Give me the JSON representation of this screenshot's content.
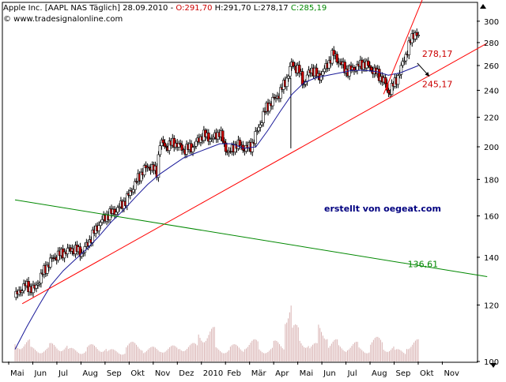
{
  "header": {
    "instrument": "Apple Inc. [AAPL NAS  Täglich] 28.09.2010 - ",
    "open": "O:291,70",
    "high": "H:291,70",
    "low": "L:278,17",
    "close": "C:285,19",
    "copyright": "© www.tradesignalonline.com"
  },
  "watermark": "erstellt von oegeat.com",
  "colors": {
    "open": "#cc0000",
    "close": "#008800",
    "up_trend": "#ff0000",
    "down_trend": "#008800",
    "moving_average": "#1a1a99",
    "watermark": "#000080",
    "candle_up": "#ffffff",
    "candle_down": "#cc0000",
    "volume": "#d9b3b3"
  },
  "chart_data": {
    "type": "candlestick",
    "y_scale": "log",
    "ylim": [
      100,
      310
    ],
    "y_ticks": [
      "300",
      "280",
      "260",
      "240",
      "220",
      "200",
      "180",
      "160",
      "140",
      "120",
      "100"
    ],
    "y_tick_values": [
      300,
      280,
      260,
      240,
      220,
      200,
      180,
      160,
      140,
      120,
      100
    ],
    "x_ticks": [
      "Mai",
      "Jun",
      "Jul",
      "Aug",
      "Sep",
      "Okt",
      "Nov",
      "Dez",
      "2010",
      "Feb",
      "Mär",
      "Apr",
      "Mai",
      "Jun",
      "Jul",
      "Aug",
      "Sep",
      "Okt",
      "Nov"
    ],
    "period": "2009-05 to 2010-11",
    "close_path": [
      [
        0,
        123
      ],
      [
        0.4,
        128
      ],
      [
        0.8,
        126
      ],
      [
        1.2,
        134
      ],
      [
        1.6,
        140
      ],
      [
        2.0,
        142
      ],
      [
        2.4,
        144
      ],
      [
        2.8,
        142
      ],
      [
        3.2,
        150
      ],
      [
        3.5,
        156
      ],
      [
        3.8,
        160
      ],
      [
        4.2,
        163
      ],
      [
        4.6,
        168
      ],
      [
        5.0,
        178
      ],
      [
        5.3,
        185
      ],
      [
        5.6,
        188
      ],
      [
        5.9,
        184
      ],
      [
        6.0,
        203
      ],
      [
        6.3,
        200
      ],
      [
        6.6,
        203
      ],
      [
        7.0,
        198
      ],
      [
        7.4,
        200
      ],
      [
        7.8,
        208
      ],
      [
        8.2,
        205
      ],
      [
        8.5,
        210
      ],
      [
        8.7,
        200
      ],
      [
        8.9,
        196
      ],
      [
        9.2,
        202
      ],
      [
        9.5,
        199
      ],
      [
        9.8,
        200
      ],
      [
        10.1,
        212
      ],
      [
        10.4,
        226
      ],
      [
        10.7,
        232
      ],
      [
        11.0,
        238
      ],
      [
        11.3,
        250
      ],
      [
        11.5,
        262
      ],
      [
        11.8,
        255
      ],
      [
        12.0,
        245
      ],
      [
        12.3,
        258
      ],
      [
        12.6,
        250
      ],
      [
        12.9,
        258
      ],
      [
        13.2,
        270
      ],
      [
        13.5,
        262
      ],
      [
        13.8,
        255
      ],
      [
        14.1,
        258
      ],
      [
        14.5,
        262
      ],
      [
        14.8,
        257
      ],
      [
        15.0,
        254
      ],
      [
        15.3,
        248
      ],
      [
        15.5,
        238
      ],
      [
        15.8,
        247
      ],
      [
        16.0,
        256
      ],
      [
        16.2,
        268
      ],
      [
        16.4,
        280
      ],
      [
        16.6,
        290
      ],
      [
        16.75,
        285
      ]
    ],
    "moving_average": [
      [
        0,
        104
      ],
      [
        0.5,
        112
      ],
      [
        1.0,
        120
      ],
      [
        1.5,
        128
      ],
      [
        2.0,
        134
      ],
      [
        2.5,
        139
      ],
      [
        3.0,
        144
      ],
      [
        3.5,
        150
      ],
      [
        4.0,
        157
      ],
      [
        4.5,
        163
      ],
      [
        5.0,
        170
      ],
      [
        5.5,
        177
      ],
      [
        6.0,
        183
      ],
      [
        6.5,
        188
      ],
      [
        7.0,
        193
      ],
      [
        7.5,
        196
      ],
      [
        8.0,
        199
      ],
      [
        8.5,
        202
      ],
      [
        9.0,
        202
      ],
      [
        9.5,
        199
      ],
      [
        10.0,
        200
      ],
      [
        10.5,
        211
      ],
      [
        11.0,
        224
      ],
      [
        11.5,
        237
      ],
      [
        12.0,
        246
      ],
      [
        12.5,
        250
      ],
      [
        13.0,
        252
      ],
      [
        13.5,
        254
      ],
      [
        14.0,
        256
      ],
      [
        14.5,
        256
      ],
      [
        15.0,
        255
      ],
      [
        15.5,
        252
      ],
      [
        16.0,
        254
      ],
      [
        16.5,
        258
      ],
      [
        16.75,
        260
      ]
    ],
    "volume": [
      [
        0.3,
        0.18
      ],
      [
        1.0,
        0.12
      ],
      [
        1.8,
        0.15
      ],
      [
        2.6,
        0.11
      ],
      [
        3.4,
        0.14
      ],
      [
        4.2,
        0.1
      ],
      [
        5.0,
        0.16
      ],
      [
        5.6,
        0.12
      ],
      [
        6.4,
        0.13
      ],
      [
        7.2,
        0.15
      ],
      [
        8.0,
        0.28
      ],
      [
        8.6,
        0.12
      ],
      [
        9.2,
        0.14
      ],
      [
        9.8,
        0.18
      ],
      [
        10.4,
        0.12
      ],
      [
        11.0,
        0.17
      ],
      [
        11.4,
        0.55
      ],
      [
        11.6,
        0.3
      ],
      [
        12.0,
        0.2
      ],
      [
        12.4,
        0.15
      ],
      [
        12.8,
        0.32
      ],
      [
        13.2,
        0.18
      ],
      [
        13.6,
        0.14
      ],
      [
        14.0,
        0.16
      ],
      [
        14.5,
        0.12
      ],
      [
        15.0,
        0.2
      ],
      [
        15.5,
        0.14
      ],
      [
        16.0,
        0.1
      ],
      [
        16.5,
        0.18
      ]
    ],
    "volume_ylim": [
      0,
      1
    ],
    "trendlines": [
      {
        "name": "support",
        "label": "245,17",
        "color": "#ff0000",
        "from": [
          0.3,
          120.5
        ],
        "to": [
          19.6,
          279.5
        ]
      },
      {
        "name": "steep-up",
        "label": "278,17",
        "color": "#ff0000",
        "from": [
          15.3,
          237
        ],
        "to": [
          17.2,
          340
        ]
      },
      {
        "name": "down",
        "label": "136,61",
        "color": "#008800",
        "from": [
          0,
          168.5
        ],
        "to": [
          19.6,
          131.5
        ]
      }
    ],
    "annotations": [
      {
        "text": "278,17",
        "color": "#cc0000",
        "at": [
          16.9,
          270
        ]
      },
      {
        "text": "245,17",
        "color": "#cc0000",
        "at": [
          16.9,
          245
        ]
      },
      {
        "text": "136,61",
        "color": "#008800",
        "at": [
          16.3,
          137
        ]
      }
    ],
    "arrow": {
      "from": [
        16.7,
        262
      ],
      "to": [
        17.2,
        251
      ]
    }
  }
}
